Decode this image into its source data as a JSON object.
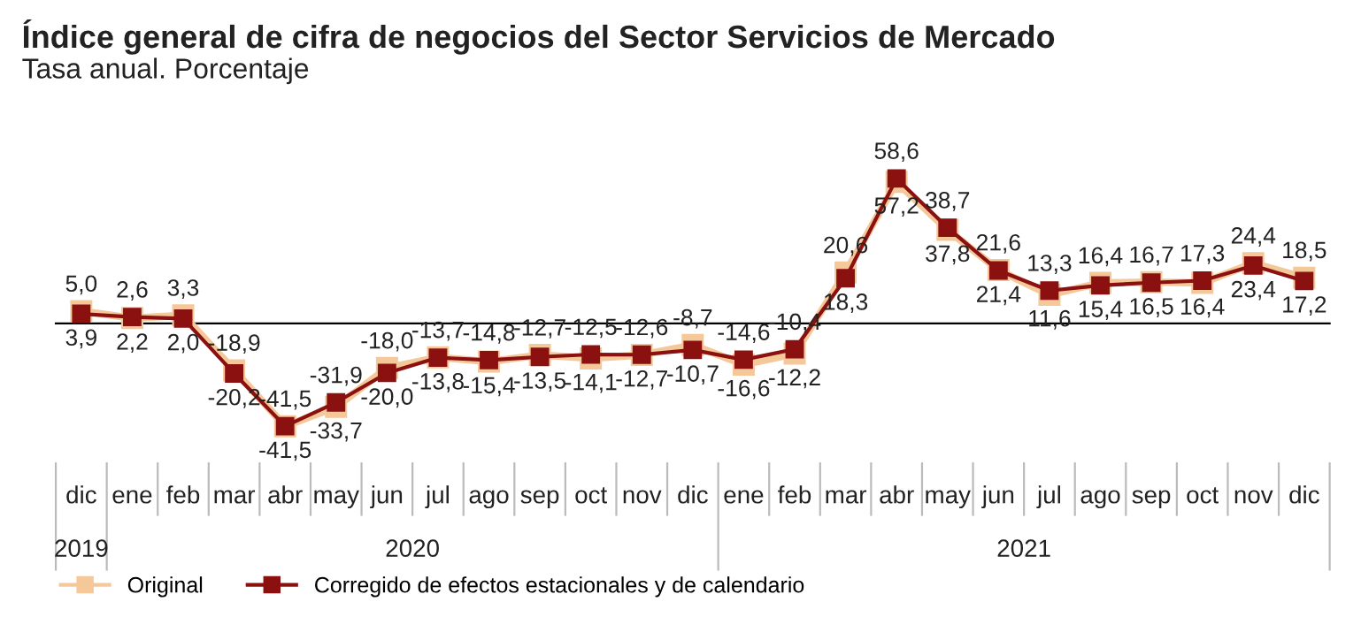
{
  "chart_data": {
    "type": "line",
    "title": "Índice general de cifra de negocios del Sector Servicios de Mercado",
    "subtitle": "Tasa anual. Porcentaje",
    "categories": [
      "dic",
      "ene",
      "feb",
      "mar",
      "abr",
      "may",
      "jun",
      "jul",
      "ago",
      "sep",
      "oct",
      "nov",
      "dic",
      "ene",
      "feb",
      "mar",
      "abr",
      "may",
      "jun",
      "jul",
      "ago",
      "sep",
      "oct",
      "nov",
      "dic"
    ],
    "series": [
      {
        "name": "Original",
        "color": "#f5c89a",
        "values": [
          5.0,
          2.2,
          3.3,
          -18.9,
          -41.5,
          -33.7,
          -18.0,
          -13.7,
          -15.4,
          -12.7,
          -14.1,
          -12.7,
          -8.7,
          -16.6,
          -12.2,
          20.6,
          57.2,
          37.8,
          21.6,
          11.6,
          16.4,
          16.7,
          16.4,
          24.4,
          18.5
        ],
        "value_labels": [
          "5,0",
          "2,2",
          "3,3",
          "-18,9",
          "-41,5",
          "-33,7",
          "-18,0",
          "-13,7",
          "-15,4",
          "-12,7",
          "-14,1",
          "-12,7",
          "-8,7",
          "-16,6",
          "-12,2",
          "20,6",
          "57,2",
          "37,8",
          "21,6",
          "11,6",
          "16,4",
          "16,7",
          "16,4",
          "24,4",
          "18,5"
        ]
      },
      {
        "name": "Corregido de efectos estacionales y de calendario",
        "color": "#8b1010",
        "values": [
          3.9,
          2.6,
          2.0,
          -20.2,
          -41.5,
          -31.9,
          -20.0,
          -13.8,
          -14.8,
          -13.5,
          -12.5,
          -12.6,
          -10.7,
          -14.6,
          -10.4,
          18.3,
          58.6,
          38.7,
          21.4,
          13.3,
          15.4,
          16.5,
          17.3,
          23.4,
          17.2
        ],
        "value_labels": [
          "3,9",
          "2,6",
          "2,0",
          "-20,2",
          "-41,5",
          "-31,9",
          "-20,0",
          "-13,8",
          "-14,8",
          "-13,5",
          "-12,5",
          "-12,6",
          "-10,7",
          "-14,6",
          "-10,4",
          "18,3",
          "58,6",
          "38,7",
          "21,4",
          "13,3",
          "15,4",
          "16,5",
          "17,3",
          "23,4",
          "17,2"
        ]
      }
    ],
    "annotations": [
      "2019",
      "2020",
      "2021"
    ],
    "tick_labels": "x",
    "marker": "square",
    "line_style": "solid",
    "grid": false,
    "legend": "bottom"
  }
}
